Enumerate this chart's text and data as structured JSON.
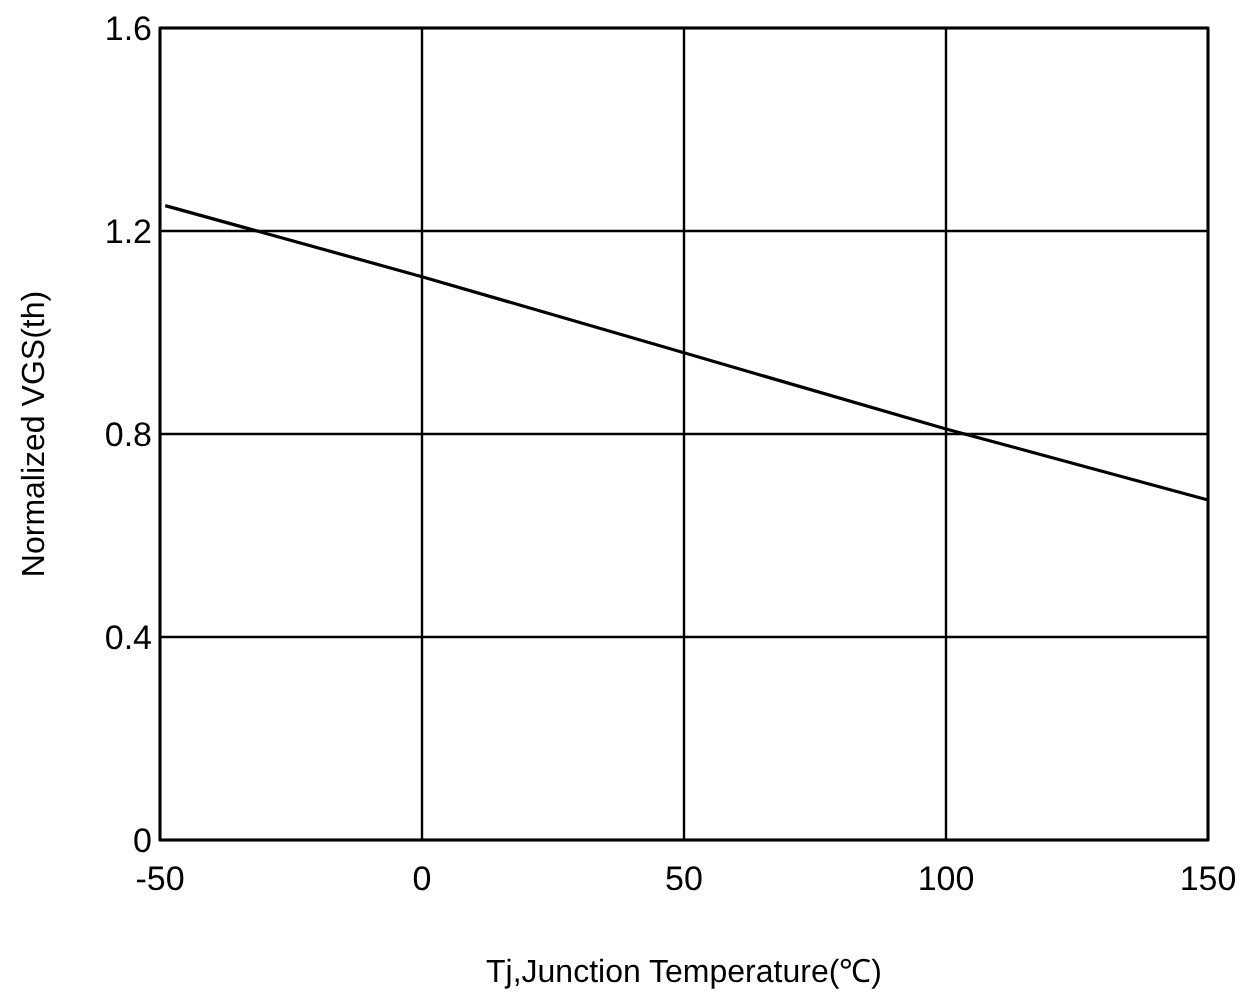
{
  "chart_data": {
    "type": "line",
    "xlabel": "Tj,Junction Temperature(℃)",
    "ylabel": "Normalized VGS(th)",
    "x": [
      -49,
      0,
      50,
      100,
      150
    ],
    "series": [
      {
        "color": "#000000",
        "values": [
          1.25,
          1.11,
          0.96,
          0.81,
          0.67
        ]
      }
    ],
    "xlim": [
      -50,
      150
    ],
    "xticks": [
      -50,
      0,
      50,
      100,
      150
    ],
    "ylim": [
      0,
      1.6
    ],
    "yticks": [
      0,
      0.4,
      0.8,
      1.2,
      1.6
    ],
    "grid": true
  }
}
